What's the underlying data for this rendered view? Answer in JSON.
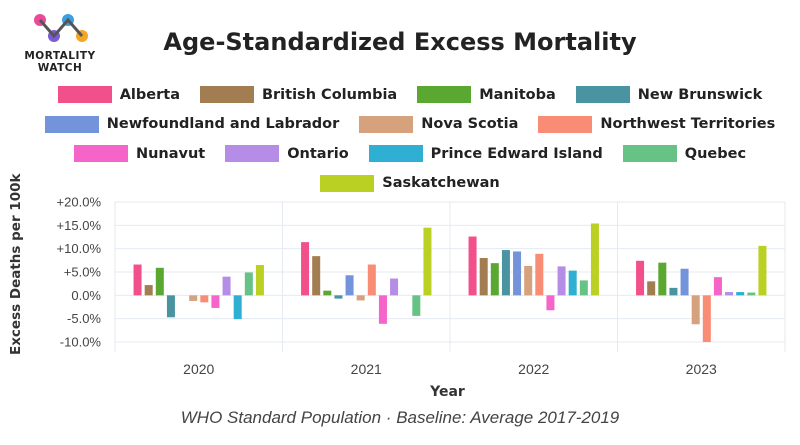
{
  "logo": {
    "line1": "MORTALITY",
    "line2": "WATCH",
    "colors": [
      "#e94b9a",
      "#7b5bd6",
      "#3aa0e0",
      "#f6a623"
    ]
  },
  "caption": "WHO Standard Population · Baseline: Average 2017-2019",
  "chart_data": {
    "type": "bar",
    "title": "Age-Standardized Excess Mortality",
    "xlabel": "Year",
    "ylabel": "Excess Deaths per 100k",
    "categories": [
      "2020",
      "2021",
      "2022",
      "2023"
    ],
    "ylim": [
      -10,
      20
    ],
    "yticks": [
      "+20.0%",
      "+15.0%",
      "+10.0%",
      "+5.0%",
      "0.0%",
      "-5.0%",
      "-10.0%"
    ],
    "ytick_values": [
      20,
      15,
      10,
      5,
      0,
      -5,
      -10
    ],
    "grid": true,
    "legend_position": "top",
    "series": [
      {
        "name": "Alberta",
        "color": "#f2508b",
        "values": [
          6.6,
          11.4,
          12.6,
          7.4
        ]
      },
      {
        "name": "British Columbia",
        "color": "#a37d52",
        "values": [
          2.2,
          8.4,
          8.0,
          3.0
        ]
      },
      {
        "name": "Manitoba",
        "color": "#5aa832",
        "values": [
          5.9,
          1.0,
          6.9,
          7.0
        ]
      },
      {
        "name": "New Brunswick",
        "color": "#4a94a2",
        "values": [
          -4.7,
          -0.7,
          9.7,
          1.6
        ]
      },
      {
        "name": "Newfoundland and Labrador",
        "color": "#7393db",
        "values": [
          null,
          4.3,
          9.4,
          5.7
        ]
      },
      {
        "name": "Nova Scotia",
        "color": "#d6a27e",
        "values": [
          -1.2,
          -1.1,
          6.3,
          -6.2
        ]
      },
      {
        "name": "Northwest Territories",
        "color": "#f98c74",
        "values": [
          -1.5,
          6.6,
          8.9,
          -10.0
        ]
      },
      {
        "name": "Nunavut",
        "color": "#f564c8",
        "values": [
          -2.7,
          -6.1,
          -3.2,
          3.9
        ]
      },
      {
        "name": "Ontario",
        "color": "#b68de6",
        "values": [
          4.0,
          3.6,
          6.2,
          0.7
        ]
      },
      {
        "name": "Prince Edward Island",
        "color": "#2fb0d2",
        "values": [
          -5.1,
          null,
          5.3,
          0.7
        ]
      },
      {
        "name": "Quebec",
        "color": "#67c285",
        "values": [
          4.9,
          -4.4,
          3.2,
          0.6
        ]
      },
      {
        "name": "Saskatchewan",
        "color": "#bad124",
        "values": [
          6.5,
          14.5,
          15.4,
          10.6
        ]
      }
    ]
  }
}
